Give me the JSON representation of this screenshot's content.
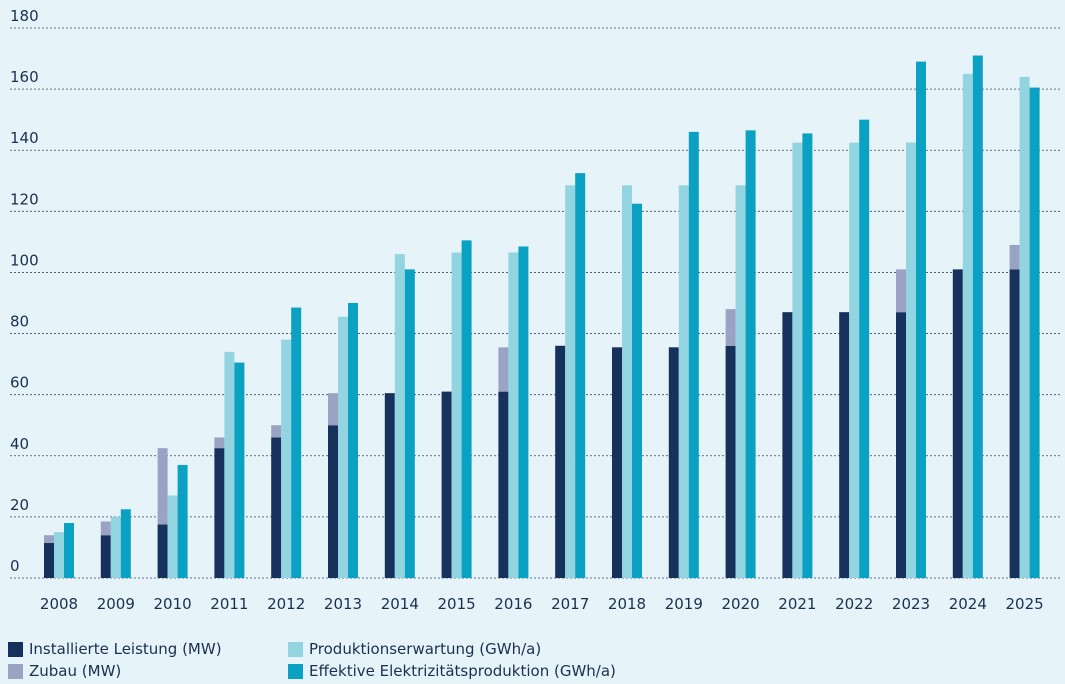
{
  "chart_data": {
    "type": "bar",
    "title": "",
    "xlabel": "",
    "ylabel": "",
    "ylim": [
      0,
      180
    ],
    "yticks": [
      0,
      20,
      40,
      60,
      80,
      100,
      120,
      140,
      160,
      180
    ],
    "grid": true,
    "legend_position": "bottom-left",
    "categories": [
      "2008",
      "2009",
      "2010",
      "2011",
      "2012",
      "2013",
      "2014",
      "2015",
      "2016",
      "2017",
      "2018",
      "2019",
      "2020",
      "2021",
      "2022",
      "2023",
      "2024",
      "2025"
    ],
    "series": [
      {
        "name": "Installierte Leistung (MW)",
        "color": "#16325c",
        "stack": "capacity",
        "values": [
          11.5,
          14,
          17.5,
          42.5,
          46,
          50,
          60.5,
          61,
          61,
          76,
          75.5,
          75.5,
          76,
          87,
          87,
          87,
          101,
          101
        ]
      },
      {
        "name": "Zubau (MW)",
        "color": "#9aa3c3",
        "stack": "capacity",
        "values": [
          2.5,
          4.5,
          25,
          3.5,
          4,
          10.5,
          0,
          0,
          14.5,
          0,
          0,
          0,
          12,
          0,
          0,
          14,
          0,
          8
        ]
      },
      {
        "name": "Produktionserwartung (GWh/a)",
        "color": "#92d4df",
        "stack": "expected",
        "values": [
          15,
          20,
          27,
          74,
          78,
          85.5,
          106,
          106.5,
          106.5,
          128.5,
          128.5,
          128.5,
          128.5,
          142.5,
          142.5,
          142.5,
          165,
          164
        ]
      },
      {
        "name": "Effektive Elektrizitätsproduktion (GWh/a)",
        "color": "#0ba1c2",
        "stack": "actual",
        "values": [
          18,
          22.5,
          37,
          70.5,
          88.5,
          90,
          101,
          110.5,
          108.5,
          132.5,
          122.5,
          146,
          146.5,
          145.5,
          150,
          169,
          171,
          160.5
        ]
      }
    ]
  },
  "colors": {
    "background": "#e6f3f8",
    "grid": "#1c2f4f",
    "text": "#1c2f4f"
  },
  "legend": [
    {
      "label": "Installierte Leistung (MW)",
      "color": "#16325c"
    },
    {
      "label": "Zubau (MW)",
      "color": "#9aa3c3"
    },
    {
      "label": "Produktionserwartung (GWh/a)",
      "color": "#92d4df"
    },
    {
      "label": "Effektive Elektrizitätsproduktion (GWh/a)",
      "color": "#0ba1c2"
    }
  ]
}
